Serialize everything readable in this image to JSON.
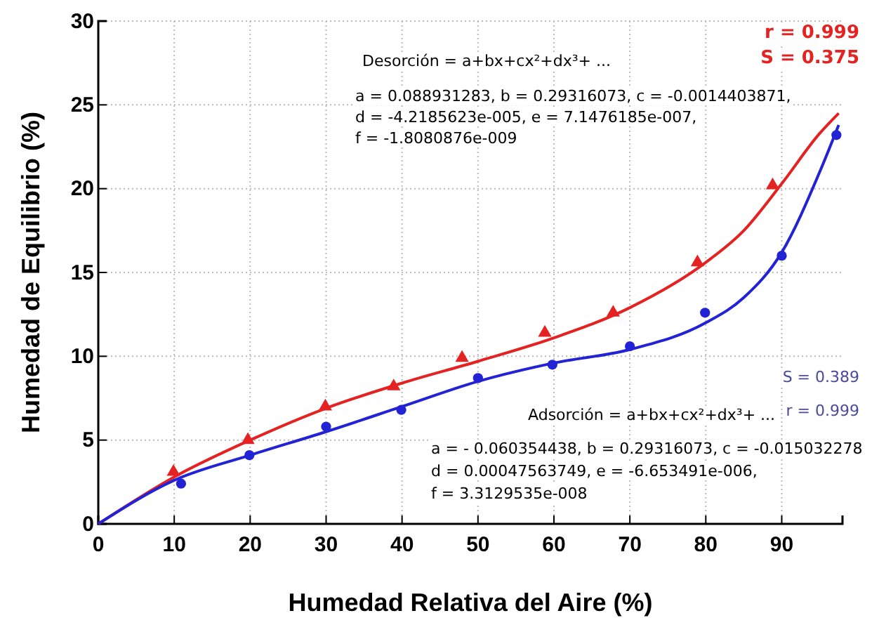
{
  "chart_data": {
    "type": "scatter",
    "xlabel": "Humedad Relativa del Aire (%)",
    "ylabel": "Humedad de Equilibrio (%)",
    "xlim": [
      0,
      98
    ],
    "ylim": [
      0,
      30
    ],
    "xticks": [
      0,
      10,
      20,
      30,
      40,
      50,
      60,
      70,
      80,
      90
    ],
    "yticks": [
      0,
      5,
      10,
      15,
      20,
      25,
      30
    ],
    "grid": true,
    "series": [
      {
        "type": "line",
        "color": "#e52222",
        "line_style": "solid",
        "marker": "none",
        "x": [
          0,
          10,
          20,
          30,
          40,
          50,
          60,
          70,
          80,
          85,
          90,
          95,
          97.5
        ],
        "values": [
          0,
          2.8,
          5.0,
          6.9,
          8.4,
          9.7,
          11.1,
          12.9,
          15.6,
          17.5,
          20.3,
          23.3,
          24.5
        ]
      },
      {
        "type": "line",
        "color": "#2323d6",
        "line_style": "solid",
        "marker": "none",
        "x": [
          0,
          10,
          20,
          30,
          40,
          50,
          60,
          70,
          80,
          85,
          90,
          95,
          97.5
        ],
        "values": [
          0,
          2.6,
          4.1,
          5.5,
          7.0,
          8.5,
          9.6,
          10.4,
          12.0,
          13.5,
          16.2,
          21.0,
          23.8
        ]
      },
      {
        "color": "#e52222",
        "marker": "triangle",
        "x": [
          9.9,
          19.7,
          29.9,
          38.9,
          47.9,
          58.8,
          67.8,
          78.9,
          88.8
        ],
        "values": [
          3.1,
          5.0,
          7.0,
          8.2,
          9.9,
          11.4,
          12.6,
          15.6,
          20.2
        ]
      },
      {
        "color": "#2323d6",
        "marker": "circle",
        "x": [
          10.9,
          19.9,
          30.0,
          39.9,
          50.0,
          59.8,
          70.0,
          79.9,
          90.0,
          97.2
        ],
        "values": [
          2.4,
          4.1,
          5.8,
          6.8,
          8.7,
          9.5,
          10.6,
          12.6,
          16.0,
          23.2
        ]
      }
    ],
    "annotations": [
      "r = 0.999",
      "S = 0.375",
      "Desorción = a+bx+cx²+dx³+ ...",
      "a = 0.088931283, b = 0.29316073, c = -0.0014403871,",
      "d = -4.2185623e-005, e = 7.1476185e-007,",
      "f = -1.8080876e-009",
      "S = 0.389",
      "r = 0.999",
      "Adsorción = a+bx+cx²+dx³+ ...",
      "a = - 0.060354438, b = 0.29316073, c = -0.015032278",
      "d = 0.00047563749, e = -6.653491e-006,",
      "f = 3.3129535e-008"
    ]
  }
}
